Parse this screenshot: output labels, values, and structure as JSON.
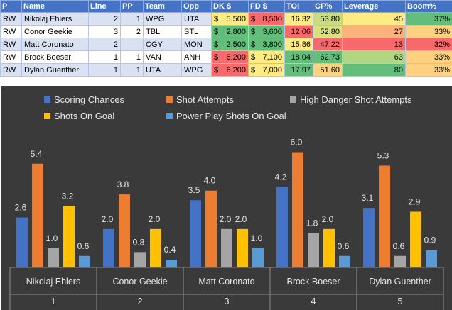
{
  "table": {
    "headers": [
      "P",
      "Name",
      "Line",
      "PP",
      "Team",
      "Opp",
      "DK $",
      "FD $",
      "TOI",
      "CF%",
      "Leverage",
      "Boom%"
    ],
    "rows": [
      {
        "p": "RW",
        "name": "Nikolaj Ehlers",
        "line": "2",
        "pp": "1",
        "team": "WPG",
        "opp": "UTA",
        "dk": "5,500",
        "fd": "8,500",
        "toi": "16.32",
        "cf": "53.80",
        "lev": "45",
        "boom": "37%"
      },
      {
        "p": "RW",
        "name": "Conor Geekie",
        "line": "3",
        "pp": "2",
        "team": "TBL",
        "opp": "STL",
        "dk": "2,800",
        "fd": "3,600",
        "toi": "12.06",
        "cf": "52.80",
        "lev": "27",
        "boom": "33%"
      },
      {
        "p": "RW",
        "name": "Matt Coronato",
        "line": "2",
        "pp": "",
        "team": "CGY",
        "opp": "MON",
        "dk": "2,500",
        "fd": "3,800",
        "toi": "15.86",
        "cf": "47.22",
        "lev": "13",
        "boom": "32%"
      },
      {
        "p": "RW",
        "name": "Brock Boeser",
        "line": "1",
        "pp": "1",
        "team": "VAN",
        "opp": "ANH",
        "dk": "6,200",
        "fd": "7,100",
        "toi": "18.04",
        "cf": "62.73",
        "lev": "63",
        "boom": "33%"
      },
      {
        "p": "RW",
        "name": "Dylan Guenther",
        "line": "1",
        "pp": "1",
        "team": "UTA",
        "opp": "WPG",
        "dk": "6,200",
        "fd": "7,000",
        "toi": "17.97",
        "cf": "51.60",
        "lev": "80",
        "boom": "33%"
      }
    ],
    "currency_symbol": "$",
    "cell_colors": {
      "dk": [
        "#ffeb84",
        "#63be7b",
        "#63be7b",
        "#f8696b",
        "#f8696b"
      ],
      "fd": [
        "#f8696b",
        "#63be7b",
        "#63be7b",
        "#ffeb84",
        "#ffeb84"
      ],
      "toi": [
        "#ffeb84",
        "#f8696b",
        "#ffeb84",
        "#63be7b",
        "#63be7b"
      ],
      "cf": [
        "#c7db81",
        "#d8e082",
        "#f8696b",
        "#63be7b",
        "#fbd280"
      ],
      "lev": [
        "#ffeb84",
        "#fbb27b",
        "#f8696b",
        "#b1d580",
        "#63be7b"
      ],
      "boom": [
        "#63be7b",
        "#fdd17f",
        "#f8696b",
        "#fdd17f",
        "#fdd17f"
      ]
    }
  },
  "chart_data": {
    "type": "bar",
    "categories": [
      "Nikolaj Ehlers",
      "Conor Geekie",
      "Matt Coronato",
      "Brock Boeser",
      "Dylan Guenther"
    ],
    "category_numbers": [
      "1",
      "2",
      "3",
      "4",
      "5"
    ],
    "series": [
      {
        "name": "Scoring Chances",
        "color": "#4472c4",
        "values": [
          2.6,
          2.0,
          3.5,
          4.2,
          3.1
        ],
        "labels": [
          "2.6",
          "2.0",
          "3.5",
          "4.2",
          "3.1"
        ]
      },
      {
        "name": "Shot Attempts",
        "color": "#ed7d31",
        "values": [
          5.4,
          3.8,
          4.0,
          6.0,
          5.3
        ],
        "labels": [
          "5.4",
          "3.8",
          "4.0",
          "6.0",
          "5.3"
        ]
      },
      {
        "name": "High Danger Shot Attempts",
        "color": "#a5a5a5",
        "values": [
          1.0,
          0.8,
          2.0,
          1.8,
          0.6
        ],
        "labels": [
          "1.0",
          "0.8",
          "2.0",
          "1.8",
          "0.6"
        ]
      },
      {
        "name": "Shots On Goal",
        "color": "#ffc000",
        "values": [
          3.2,
          2.0,
          2.0,
          2.0,
          2.9
        ],
        "labels": [
          "3.2",
          "2.0",
          "2.0",
          "2.0",
          "2.9"
        ]
      },
      {
        "name": "Power Play Shots On Goal",
        "color": "#5b9bd5",
        "values": [
          0.6,
          0.4,
          1.0,
          0.6,
          0.9
        ],
        "labels": [
          "0.6",
          "0.4",
          "1.0",
          "0.6",
          "0.9"
        ]
      }
    ],
    "ylim": [
      0,
      6.5
    ],
    "legend_position": "top",
    "grid": false,
    "background": "#3a3a3a",
    "title": "",
    "xlabel": "",
    "ylabel": ""
  }
}
